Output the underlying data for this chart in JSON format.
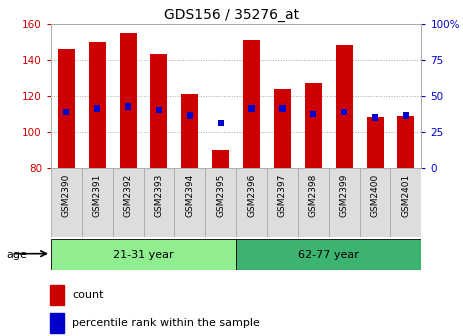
{
  "title": "GDS156 / 35276_at",
  "samples": [
    "GSM2390",
    "GSM2391",
    "GSM2392",
    "GSM2393",
    "GSM2394",
    "GSM2395",
    "GSM2396",
    "GSM2397",
    "GSM2398",
    "GSM2399",
    "GSM2400",
    "GSM2401"
  ],
  "counts": [
    146,
    150,
    155,
    143,
    121,
    90,
    151,
    124,
    127,
    148,
    108,
    109
  ],
  "percentile_values": [
    111,
    113,
    114,
    112,
    109,
    105,
    113,
    113,
    110,
    111,
    108,
    109
  ],
  "ymin": 80,
  "ymax": 160,
  "yticks": [
    80,
    100,
    120,
    140,
    160
  ],
  "groups": [
    {
      "label": "21-31 year",
      "start": 0,
      "end": 6,
      "color": "#90EE90"
    },
    {
      "label": "62-77 year",
      "start": 6,
      "end": 12,
      "color": "#3CB371"
    }
  ],
  "bar_color": "#CC0000",
  "percentile_color": "#0000CC",
  "bar_width": 0.55,
  "background_color": "#ffffff",
  "grid_color": "#aaaaaa",
  "right_yticks": [
    0,
    25,
    50,
    75,
    100
  ],
  "right_ylabels": [
    "0",
    "25",
    "50",
    "75",
    "100%"
  ],
  "label_bg_color": "#dddddd",
  "label_border_color": "#aaaaaa"
}
